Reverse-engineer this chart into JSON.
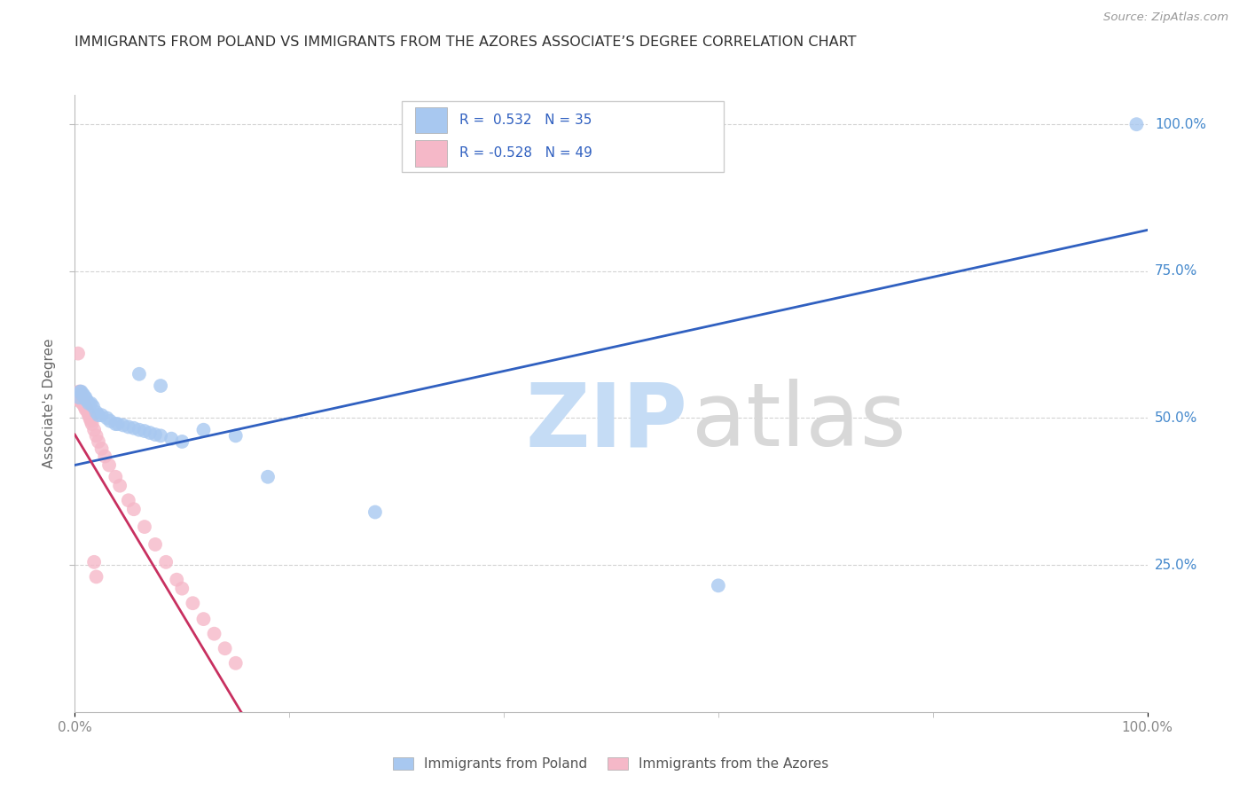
{
  "title": "IMMIGRANTS FROM POLAND VS IMMIGRANTS FROM THE AZORES ASSOCIATE’S DEGREE CORRELATION CHART",
  "source": "Source: ZipAtlas.com",
  "ylabel": "Associate's Degree",
  "legend_label_blue": "Immigrants from Poland",
  "legend_label_pink": "Immigrants from the Azores",
  "blue_color": "#A8C8F0",
  "pink_color": "#F5B8C8",
  "blue_line_color": "#3060C0",
  "pink_line_color": "#C83060",
  "blue_scatter": [
    [
      0.004,
      0.535
    ],
    [
      0.005,
      0.545
    ],
    [
      0.006,
      0.545
    ],
    [
      0.007,
      0.54
    ],
    [
      0.008,
      0.54
    ],
    [
      0.009,
      0.535
    ],
    [
      0.01,
      0.535
    ],
    [
      0.011,
      0.53
    ],
    [
      0.013,
      0.525
    ],
    [
      0.015,
      0.525
    ],
    [
      0.017,
      0.52
    ],
    [
      0.02,
      0.51
    ],
    [
      0.022,
      0.505
    ],
    [
      0.025,
      0.505
    ],
    [
      0.03,
      0.5
    ],
    [
      0.033,
      0.495
    ],
    [
      0.038,
      0.49
    ],
    [
      0.04,
      0.49
    ],
    [
      0.045,
      0.488
    ],
    [
      0.05,
      0.485
    ],
    [
      0.055,
      0.483
    ],
    [
      0.06,
      0.48
    ],
    [
      0.065,
      0.478
    ],
    [
      0.07,
      0.475
    ],
    [
      0.075,
      0.472
    ],
    [
      0.08,
      0.47
    ],
    [
      0.09,
      0.465
    ],
    [
      0.1,
      0.46
    ],
    [
      0.06,
      0.575
    ],
    [
      0.08,
      0.555
    ],
    [
      0.12,
      0.48
    ],
    [
      0.15,
      0.47
    ],
    [
      0.18,
      0.4
    ],
    [
      0.28,
      0.34
    ],
    [
      0.6,
      0.215
    ],
    [
      0.99,
      1.0
    ]
  ],
  "pink_scatter": [
    [
      0.003,
      0.61
    ],
    [
      0.004,
      0.545
    ],
    [
      0.004,
      0.54
    ],
    [
      0.004,
      0.53
    ],
    [
      0.005,
      0.545
    ],
    [
      0.005,
      0.54
    ],
    [
      0.005,
      0.535
    ],
    [
      0.005,
      0.53
    ],
    [
      0.006,
      0.54
    ],
    [
      0.006,
      0.535
    ],
    [
      0.006,
      0.528
    ],
    [
      0.007,
      0.535
    ],
    [
      0.007,
      0.53
    ],
    [
      0.007,
      0.525
    ],
    [
      0.008,
      0.53
    ],
    [
      0.008,
      0.525
    ],
    [
      0.009,
      0.525
    ],
    [
      0.009,
      0.52
    ],
    [
      0.01,
      0.52
    ],
    [
      0.01,
      0.515
    ],
    [
      0.011,
      0.515
    ],
    [
      0.012,
      0.51
    ],
    [
      0.013,
      0.505
    ],
    [
      0.014,
      0.5
    ],
    [
      0.015,
      0.495
    ],
    [
      0.016,
      0.49
    ],
    [
      0.018,
      0.48
    ],
    [
      0.02,
      0.47
    ],
    [
      0.022,
      0.46
    ],
    [
      0.025,
      0.448
    ],
    [
      0.028,
      0.435
    ],
    [
      0.032,
      0.42
    ],
    [
      0.038,
      0.4
    ],
    [
      0.042,
      0.385
    ],
    [
      0.05,
      0.36
    ],
    [
      0.055,
      0.345
    ],
    [
      0.065,
      0.315
    ],
    [
      0.075,
      0.285
    ],
    [
      0.085,
      0.255
    ],
    [
      0.095,
      0.225
    ],
    [
      0.1,
      0.21
    ],
    [
      0.11,
      0.185
    ],
    [
      0.12,
      0.158
    ],
    [
      0.13,
      0.133
    ],
    [
      0.14,
      0.108
    ],
    [
      0.15,
      0.083
    ],
    [
      0.018,
      0.255
    ],
    [
      0.02,
      0.23
    ]
  ],
  "blue_line": [
    [
      0.0,
      0.42
    ],
    [
      1.0,
      0.82
    ]
  ],
  "pink_line": [
    [
      0.0,
      0.472
    ],
    [
      0.155,
      0.0
    ]
  ],
  "pink_line_dashed": [
    [
      0.155,
      0.0
    ],
    [
      0.22,
      -0.08
    ]
  ],
  "xlim": [
    0.0,
    1.0
  ],
  "ylim": [
    0.0,
    1.05
  ],
  "background_color": "#FFFFFF",
  "grid_color": "#C8C8C8",
  "title_color": "#303030",
  "right_label_color": "#4488CC",
  "tick_color": "#888888"
}
